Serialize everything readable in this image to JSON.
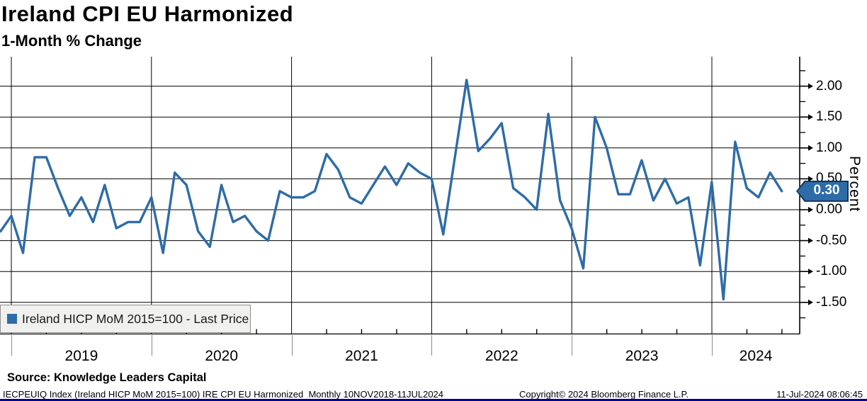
{
  "header": {
    "title": "Ireland CPI EU Harmonized",
    "subtitle": "1-Month % Change"
  },
  "chart_data": {
    "type": "line",
    "title": "Ireland CPI EU Harmonized",
    "subtitle": "1-Month % Change",
    "ylabel": "Percent",
    "ylim": [
      -2.0,
      2.5
    ],
    "grid": true,
    "legend_position": "bottom-left",
    "y_tick_labels": [
      "2.00",
      "1.50",
      "1.00",
      "0.50",
      "0.00",
      "-0.50",
      "-1.00",
      "-1.50"
    ],
    "y_tick_values": [
      2.0,
      1.5,
      1.0,
      0.5,
      0.0,
      -0.5,
      -1.0,
      -1.5
    ],
    "y_minor_step": 0.25,
    "x_year_labels": [
      "2019",
      "2020",
      "2021",
      "2022",
      "2023",
      "2024"
    ],
    "x_start_month": "2018-11",
    "x_end_month": "2024-06",
    "frequency": "Monthly",
    "series": [
      {
        "name": "Ireland HICP MoM 2015=100 - Last Price",
        "color": "#2D6CA8",
        "values": [
          -0.35,
          -0.1,
          -0.7,
          0.85,
          0.85,
          0.35,
          -0.1,
          0.2,
          -0.2,
          0.4,
          -0.3,
          -0.2,
          -0.2,
          0.2,
          -0.7,
          0.6,
          0.4,
          -0.35,
          -0.6,
          0.4,
          -0.2,
          -0.1,
          -0.35,
          -0.5,
          0.3,
          0.2,
          0.2,
          0.3,
          0.9,
          0.65,
          0.2,
          0.1,
          0.4,
          0.7,
          0.4,
          0.75,
          0.6,
          0.5,
          -0.4,
          0.85,
          2.1,
          0.95,
          1.15,
          1.4,
          0.35,
          0.2,
          0.0,
          1.55,
          0.15,
          -0.3,
          -0.95,
          1.5,
          1.0,
          0.25,
          0.25,
          0.8,
          0.15,
          0.5,
          0.1,
          0.2,
          -0.9,
          0.45,
          -1.45,
          1.1,
          0.35,
          0.2,
          0.6,
          0.3
        ]
      }
    ],
    "last_price": "0.30"
  },
  "legend": {
    "label": "Ireland HICP MoM 2015=100 - Last Price",
    "marker_color": "#2D6CA8"
  },
  "last_price_flag": {
    "value": "0.30",
    "fill": "#2D6CA8",
    "border": "#14365D"
  },
  "axis": {
    "percent_label": "Percent"
  },
  "footer": {
    "source": "Source: Knowledge Leaders Capital",
    "info": "IECPEUIQ Index (Ireland HICP MoM 2015=100) IRE CPI EU Harmonized  Monthly 10NOV2018-11JUL2024",
    "copyright": "Copyright© 2024 Bloomberg Finance L.P.",
    "datetime": "11-Jul-2024 08:06:45"
  },
  "colors": {
    "line": "#2D6CA8",
    "grid": "#000000",
    "year_separator": "#8a8a8a",
    "legend_bg": "#f0f0ee",
    "bottom_bar": "#0000A0"
  }
}
